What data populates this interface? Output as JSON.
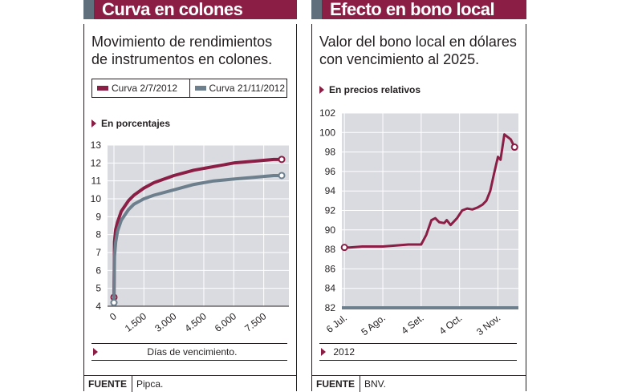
{
  "left": {
    "title": "Curva en colones",
    "subtitle_line1": "Movimiento de rendimientos",
    "subtitle_line2": "de instrumentos en colones.",
    "unit_label": "En porcentajes",
    "xlabel": "Días de vencimiento.",
    "source_key": "FUENTE",
    "source_value": "Pipca."
  },
  "right": {
    "title": "Efecto en bono local",
    "subtitle_line1": "Valor del bono local en dólares",
    "subtitle_line2": "con vencimiento al 2025.",
    "unit_label": "En precios relativos",
    "year_label": "2012",
    "source_key": "FUENTE",
    "source_value": "BNV."
  },
  "colors": {
    "maroon": "#8b1e45",
    "slate": "#6d7f8c",
    "plot_bg": "#d9dbe0",
    "grid": "#ffffff"
  },
  "chart_data": [
    {
      "type": "line",
      "title": "Curva en colones",
      "xlabel": "Días de vencimiento.",
      "ylabel": "En porcentajes",
      "xlim": [
        0,
        8600
      ],
      "ylim": [
        4,
        13
      ],
      "x_ticks": [
        "0",
        "1.500",
        "3.000",
        "4.500",
        "6.000",
        "7.500"
      ],
      "x_tick_values": [
        0,
        1500,
        3000,
        4500,
        6000,
        7500
      ],
      "y_ticks": [
        4,
        5,
        6,
        7,
        8,
        9,
        10,
        11,
        12,
        13
      ],
      "grid": true,
      "legend": "top",
      "series": [
        {
          "name": "Curva 2/7/2012",
          "color": "#8b1e45",
          "x": [
            0,
            30,
            90,
            180,
            365,
            730,
            1000,
            1500,
            2000,
            3000,
            4000,
            5000,
            6000,
            7000,
            7500,
            8000,
            8400
          ],
          "y": [
            4.5,
            7.6,
            8.3,
            8.7,
            9.3,
            9.9,
            10.2,
            10.6,
            10.9,
            11.3,
            11.6,
            11.8,
            12.0,
            12.1,
            12.15,
            12.2,
            12.2
          ]
        },
        {
          "name": "Curva 21/11/2012",
          "color": "#6d7f8c",
          "x": [
            0,
            30,
            90,
            180,
            365,
            730,
            1000,
            1500,
            2000,
            3000,
            4000,
            5000,
            6000,
            7000,
            7500,
            8000,
            8400
          ],
          "y": [
            4.2,
            6.8,
            7.6,
            8.2,
            8.8,
            9.4,
            9.7,
            10.0,
            10.2,
            10.5,
            10.8,
            11.0,
            11.1,
            11.2,
            11.25,
            11.3,
            11.3
          ]
        }
      ]
    },
    {
      "type": "line",
      "title": "Efecto en bono local",
      "ylabel": "En precios relativos",
      "xlabel": "2012",
      "ylim": [
        82,
        102
      ],
      "x_ticks": [
        "6 Jul.",
        "5 Ago.",
        "4 Set.",
        "4 Oct.",
        "3 Nov."
      ],
      "x_tick_dates": [
        "2012-07-06",
        "2012-08-05",
        "2012-09-04",
        "2012-10-04",
        "2012-11-03"
      ],
      "y_ticks": [
        82,
        84,
        86,
        88,
        90,
        92,
        94,
        96,
        98,
        100,
        102
      ],
      "grid": true,
      "series": [
        {
          "name": "",
          "color": "#8b1e45",
          "x": [
            "2012-07-06",
            "2012-07-10",
            "2012-07-20",
            "2012-07-30",
            "2012-08-05",
            "2012-08-15",
            "2012-08-25",
            "2012-08-30",
            "2012-09-04",
            "2012-09-08",
            "2012-09-12",
            "2012-09-15",
            "2012-09-18",
            "2012-09-22",
            "2012-09-24",
            "2012-09-27",
            "2012-10-02",
            "2012-10-06",
            "2012-10-10",
            "2012-10-14",
            "2012-10-18",
            "2012-10-22",
            "2012-10-25",
            "2012-10-28",
            "2012-10-31",
            "2012-11-03",
            "2012-11-05",
            "2012-11-08",
            "2012-11-10",
            "2012-11-13",
            "2012-11-16"
          ],
          "y": [
            88.2,
            88.2,
            88.3,
            88.3,
            88.3,
            88.4,
            88.5,
            88.5,
            88.5,
            89.5,
            91.0,
            91.2,
            90.8,
            90.7,
            91.0,
            90.5,
            91.2,
            92.0,
            92.2,
            92.1,
            92.3,
            92.6,
            93.0,
            94.0,
            95.8,
            97.5,
            97.2,
            99.8,
            99.6,
            99.3,
            98.5
          ]
        }
      ]
    }
  ]
}
